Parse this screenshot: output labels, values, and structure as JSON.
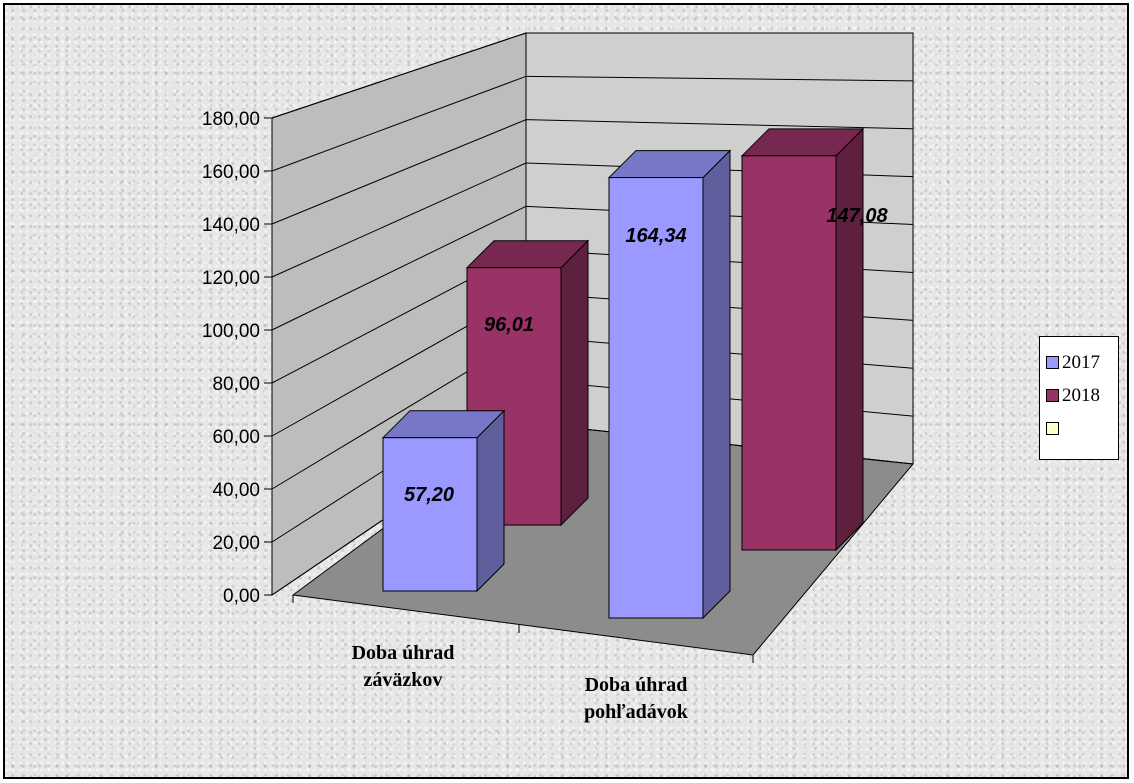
{
  "chart_data": {
    "type": "bar",
    "categories": [
      "Doba úhrad záväzkov",
      "Doba úhrad pohľadávok"
    ],
    "category_lines": [
      [
        "Doba úhrad",
        "záväzkov"
      ],
      [
        "Doba úhrad",
        "pohľadávok"
      ]
    ],
    "series": [
      {
        "name": "2017",
        "values": [
          57.2,
          164.34
        ],
        "labels": [
          "57,20",
          "164,34"
        ],
        "color": "#9999ff"
      },
      {
        "name": "2018",
        "values": [
          96.01,
          147.08
        ],
        "labels": [
          "96,01",
          "147,08"
        ],
        "color": "#993366"
      }
    ],
    "legend_extra_color": "#ffffcc",
    "y_ticks": [
      "0,00",
      "20,00",
      "40,00",
      "60,00",
      "80,00",
      "100,00",
      "120,00",
      "140,00",
      "160,00",
      "180,00"
    ],
    "ylim": [
      0,
      180
    ],
    "projection": "3d",
    "grid": true,
    "legend_position": "right",
    "colors": {
      "wall": "#c0c0c0",
      "floor": "#8c8c8c"
    }
  }
}
